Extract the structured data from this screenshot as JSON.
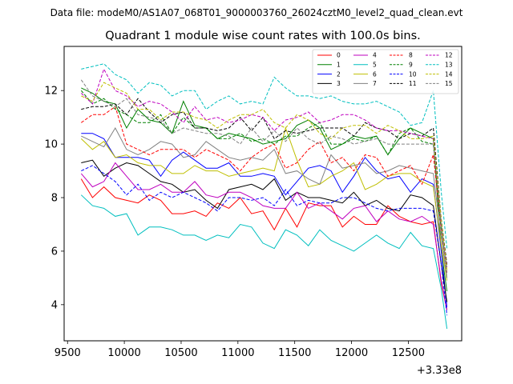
{
  "figure": {
    "suptitle": "Data file: modeM0/AS1A07_068T01_9000003760_26024cztM0_level2_quad_clean.evt"
  },
  "chart_data": {
    "type": "line",
    "title": "Quadrant 1 module wise count rates with 100.0s bins.",
    "xlabel": "",
    "ylabel": "",
    "x_offset_label": "+3.33e8",
    "xlim": [
      9470,
      12970
    ],
    "ylim": [
      2.65,
      13.65
    ],
    "x_ticks": [
      9500,
      10000,
      10500,
      11000,
      11500,
      12000,
      12500
    ],
    "y_ticks": [
      4,
      6,
      8,
      10,
      12
    ],
    "grid": false,
    "legend_position": "top-right",
    "legend_columns": 4,
    "x": [
      9620,
      9720,
      9820,
      9920,
      10020,
      10120,
      10220,
      10320,
      10420,
      10520,
      10620,
      10720,
      10820,
      10920,
      11020,
      11120,
      11220,
      11320,
      11420,
      11520,
      11620,
      11720,
      11820,
      11920,
      12020,
      12120,
      12220,
      12320,
      12420,
      12520,
      12620,
      12720,
      12790,
      12840
    ],
    "series": [
      {
        "name": "0",
        "color": "#ff0000",
        "dash": "solid",
        "values": [
          8.7,
          8.0,
          8.4,
          8.0,
          7.9,
          7.8,
          8.1,
          7.9,
          7.4,
          7.4,
          7.5,
          7.3,
          7.8,
          7.6,
          8.0,
          7.4,
          7.5,
          6.8,
          7.6,
          6.9,
          7.8,
          7.7,
          7.7,
          6.9,
          7.3,
          7.0,
          7.0,
          7.7,
          7.3,
          7.1,
          7.0,
          7.1,
          4.8,
          3.8
        ]
      },
      {
        "name": "1",
        "color": "#008000",
        "dash": "solid",
        "values": [
          12.1,
          11.9,
          11.6,
          11.5,
          10.6,
          11.3,
          10.9,
          10.8,
          10.4,
          11.6,
          10.7,
          10.6,
          10.2,
          10.4,
          10.3,
          10.2,
          10.0,
          10.1,
          10.2,
          10.7,
          10.9,
          10.6,
          9.8,
          10.0,
          10.3,
          10.2,
          10.3,
          9.6,
          10.2,
          10.6,
          10.4,
          10.2,
          6.0,
          4.5
        ]
      },
      {
        "name": "2",
        "color": "#0000ff",
        "dash": "solid",
        "values": [
          10.4,
          10.4,
          10.2,
          9.5,
          9.5,
          9.5,
          9.4,
          8.8,
          9.4,
          9.7,
          9.4,
          9.1,
          9.1,
          9.3,
          8.8,
          8.8,
          8.9,
          8.8,
          8.1,
          8.6,
          9.1,
          9.2,
          9.0,
          8.2,
          8.8,
          9.5,
          9.0,
          8.7,
          8.8,
          8.2,
          8.7,
          8.5,
          6.0,
          3.9
        ]
      },
      {
        "name": "3",
        "color": "#000000",
        "dash": "solid",
        "values": [
          9.3,
          9.4,
          8.8,
          9.1,
          9.3,
          9.2,
          8.9,
          8.6,
          8.5,
          8.2,
          8.3,
          7.9,
          7.6,
          8.3,
          8.4,
          8.5,
          8.3,
          8.7,
          7.9,
          8.2,
          8.0,
          8.0,
          7.9,
          7.8,
          8.2,
          7.7,
          7.9,
          7.6,
          7.5,
          8.1,
          8.0,
          7.7,
          5.5,
          4.1
        ]
      },
      {
        "name": "4",
        "color": "#bf00bf",
        "dash": "solid",
        "values": [
          8.9,
          8.4,
          8.6,
          9.3,
          8.8,
          8.3,
          8.3,
          8.5,
          8.2,
          8.2,
          8.6,
          8.1,
          8.0,
          8.2,
          8.2,
          8.0,
          7.7,
          7.6,
          7.6,
          8.2,
          7.6,
          7.8,
          7.5,
          7.2,
          7.6,
          7.7,
          7.1,
          7.5,
          7.2,
          7.1,
          7.3,
          7.0,
          4.9,
          3.8
        ]
      },
      {
        "name": "5",
        "color": "#00bfbf",
        "dash": "solid",
        "values": [
          8.1,
          7.7,
          7.6,
          7.3,
          7.4,
          6.6,
          6.9,
          6.9,
          6.8,
          6.6,
          6.6,
          6.4,
          6.6,
          6.5,
          7.0,
          6.9,
          6.3,
          6.1,
          6.8,
          6.6,
          6.2,
          6.8,
          6.4,
          6.2,
          6.0,
          6.3,
          6.6,
          6.3,
          6.1,
          6.7,
          6.2,
          6.1,
          4.6,
          3.1
        ]
      },
      {
        "name": "6",
        "color": "#bfbf00",
        "dash": "solid",
        "values": [
          10.2,
          9.8,
          10.1,
          9.5,
          9.6,
          9.3,
          9.2,
          9.2,
          8.9,
          8.9,
          9.2,
          9.0,
          9.0,
          8.8,
          8.9,
          9.0,
          9.1,
          9.0,
          10.6,
          9.4,
          8.4,
          8.5,
          8.8,
          9.0,
          9.3,
          8.3,
          8.5,
          8.8,
          8.9,
          8.9,
          8.6,
          8.4,
          6.2,
          4.9
        ]
      },
      {
        "name": "7",
        "color": "#808080",
        "dash": "solid",
        "values": [
          10.3,
          10.1,
          9.9,
          10.6,
          9.8,
          9.6,
          9.8,
          10.1,
          10.0,
          9.5,
          9.6,
          10.1,
          9.8,
          9.5,
          9.4,
          9.5,
          9.4,
          9.8,
          8.9,
          9.0,
          8.7,
          8.5,
          9.6,
          9.1,
          9.2,
          9.3,
          8.9,
          9.0,
          9.2,
          9.1,
          9.0,
          8.9,
          6.5,
          5.0
        ]
      },
      {
        "name": "8",
        "color": "#ff0000",
        "dash": "dashed",
        "values": [
          10.8,
          11.1,
          11.1,
          11.4,
          10.0,
          9.8,
          9.6,
          9.8,
          9.8,
          9.8,
          9.5,
          9.8,
          9.6,
          9.4,
          9.0,
          9.5,
          9.8,
          10.0,
          9.1,
          9.3,
          9.8,
          10.1,
          9.3,
          9.5,
          9.0,
          9.6,
          9.5,
          8.8,
          9.0,
          9.2,
          8.5,
          9.6,
          6.8,
          5.2
        ]
      },
      {
        "name": "9",
        "color": "#008000",
        "dash": "dashed",
        "values": [
          12.0,
          11.5,
          11.7,
          11.3,
          11.1,
          10.8,
          10.8,
          11.1,
          10.4,
          11.0,
          10.6,
          10.6,
          10.2,
          10.2,
          10.4,
          10.1,
          10.2,
          10.0,
          10.3,
          10.3,
          10.6,
          10.8,
          10.0,
          10.0,
          10.2,
          10.1,
          10.3,
          9.6,
          10.4,
          10.6,
          10.1,
          10.0,
          6.8,
          5.3
        ]
      },
      {
        "name": "10",
        "color": "#0000ff",
        "dash": "dashed",
        "values": [
          9.0,
          9.2,
          8.9,
          8.6,
          8.1,
          8.5,
          7.9,
          8.2,
          8.0,
          8.2,
          8.0,
          7.8,
          7.5,
          8.0,
          8.0,
          7.9,
          8.0,
          7.7,
          8.3,
          7.7,
          7.9,
          7.8,
          7.8,
          8.0,
          8.0,
          7.8,
          7.6,
          7.5,
          7.6,
          7.6,
          7.6,
          7.5,
          5.5,
          3.6
        ]
      },
      {
        "name": "11",
        "color": "#000000",
        "dash": "dashed",
        "values": [
          11.3,
          11.4,
          11.4,
          11.5,
          11.1,
          11.7,
          11.2,
          10.8,
          11.1,
          11.2,
          10.6,
          10.6,
          10.5,
          10.6,
          11.0,
          10.5,
          11.0,
          10.2,
          10.5,
          10.4,
          10.5,
          10.6,
          10.6,
          10.6,
          10.3,
          10.8,
          10.6,
          10.5,
          10.2,
          10.4,
          10.3,
          10.6,
          7.2,
          5.5
        ]
      },
      {
        "name": "12",
        "color": "#bf00bf",
        "dash": "dashed",
        "values": [
          11.9,
          11.5,
          12.8,
          12.0,
          11.8,
          11.4,
          11.6,
          11.5,
          11.2,
          10.8,
          11.4,
          10.9,
          11.0,
          10.8,
          10.9,
          11.1,
          11.0,
          10.5,
          10.9,
          11.0,
          11.2,
          10.8,
          10.9,
          11.1,
          11.1,
          10.9,
          10.6,
          10.5,
          10.5,
          10.4,
          10.3,
          10.2,
          7.0,
          5.4
        ]
      },
      {
        "name": "13",
        "color": "#00bfbf",
        "dash": "dashed",
        "values": [
          12.8,
          12.9,
          13.0,
          12.6,
          12.4,
          11.9,
          12.3,
          12.2,
          11.8,
          12.0,
          12.0,
          11.3,
          11.6,
          11.8,
          11.5,
          11.6,
          11.5,
          12.5,
          12.1,
          11.8,
          11.8,
          11.7,
          11.8,
          11.6,
          11.5,
          11.5,
          11.6,
          11.4,
          11.2,
          10.7,
          10.8,
          12.0,
          8.2,
          6.1
        ]
      },
      {
        "name": "14",
        "color": "#bfbf00",
        "dash": "dashed",
        "values": [
          11.8,
          11.6,
          12.3,
          12.1,
          11.9,
          11.3,
          11.3,
          10.9,
          11.2,
          11.2,
          11.0,
          10.9,
          10.6,
          10.9,
          11.1,
          11.1,
          11.3,
          10.8,
          10.6,
          11.1,
          10.9,
          10.4,
          10.2,
          10.6,
          10.7,
          10.7,
          10.4,
          10.7,
          10.5,
          10.2,
          10.2,
          10.3,
          7.2,
          5.3
        ]
      },
      {
        "name": "15",
        "color": "#808080",
        "dash": "dashed",
        "values": [
          12.4,
          11.8,
          11.6,
          11.4,
          11.7,
          11.1,
          11.0,
          10.9,
          10.4,
          10.6,
          10.5,
          10.4,
          10.4,
          10.3,
          10.0,
          10.6,
          10.1,
          10.5,
          10.1,
          10.6,
          10.2,
          10.0,
          10.3,
          10.2,
          10.0,
          10.1,
          10.2,
          10.0,
          10.0,
          10.0,
          10.0,
          10.0,
          7.0,
          5.1
        ]
      }
    ]
  }
}
